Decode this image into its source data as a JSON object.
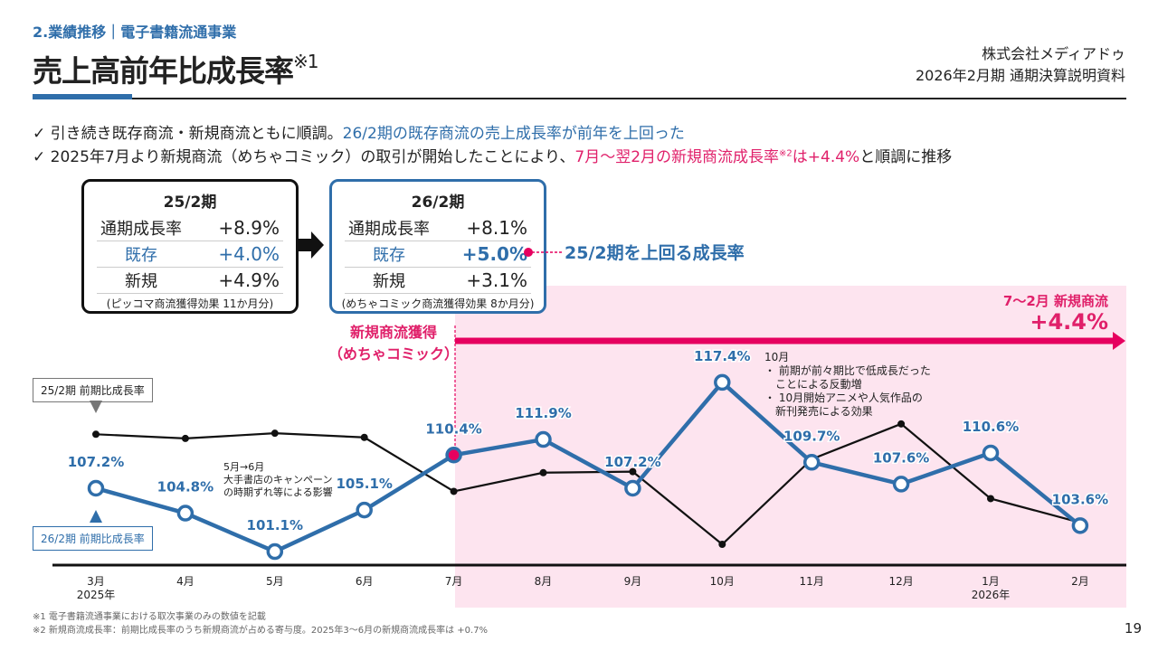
{
  "header": {
    "section": "2.業績推移｜電子書籍流通事業",
    "title": "売上高前年比成長率",
    "title_note": "※1",
    "company": "株式会社メディアドゥ",
    "document": "2026年2月期 通期決算説明資料"
  },
  "bullets": [
    {
      "check": "✓",
      "text": "引き続き既存商流・新規商流ともに順調。",
      "highlight": "26/2期の既存商流の売上成長率が前年を上回った"
    },
    {
      "check": "✓",
      "text": "2025年7月より新規商流（めちゃコミック）の取引が開始したことにより、",
      "highlight": "7月～翌2月の新規商流成長率",
      "note": "※2",
      "highlight2": "は+4.4%",
      "tail": "と順調に推移"
    }
  ],
  "summary_boxes": [
    {
      "period": "25/2期",
      "rows": [
        {
          "label": "通期成長率",
          "value": "+8.9%"
        },
        {
          "label": "既存",
          "value": "+4.0%"
        },
        {
          "label": "新規",
          "value": "+4.9%"
        }
      ],
      "note": "(ピッコマ商流獲得効果 11か月分)"
    },
    {
      "period": "26/2期",
      "rows": [
        {
          "label": "通期成長率",
          "value": "+8.1%"
        },
        {
          "label": "既存",
          "value": "+5.0%"
        },
        {
          "label": "新規",
          "value": "+3.1%"
        }
      ],
      "note": "(めちゃコミック商流獲得効果 8か月分)"
    }
  ],
  "callout": "25/2期を上回る成長率",
  "new_channel": {
    "label1": "新規商流獲得",
    "label2": "（めちゃコミック）",
    "range": "7～2月 新規商流",
    "value": "+4.4%"
  },
  "annotations": {
    "may_june": [
      "5月→6月",
      "大手書店のキャンペーン",
      "の時期ずれ等による影響"
    ],
    "october": [
      "10月",
      "・ 前期が前々期比で低成長だった",
      "　ことによる反動増",
      "・ 10月開始アニメや人気作品の",
      "　新刊発売による効果"
    ]
  },
  "colors": {
    "blue": "#2f6eaa",
    "pink": "#e6005f",
    "pink_bg": "#fde4ef",
    "black": "#111111"
  },
  "chart_data": {
    "type": "line",
    "categories": [
      "3月",
      "4月",
      "5月",
      "6月",
      "7月",
      "8月",
      "9月",
      "10月",
      "11月",
      "12月",
      "1月",
      "2月"
    ],
    "category_sublabels": {
      "0": "2025年",
      "10": "2026年"
    },
    "series": [
      {
        "name": "25/2期 前期比成長率",
        "color": "#111111",
        "values": [
          112.4,
          112.0,
          112.5,
          112.1,
          106.9,
          108.7,
          108.8,
          101.8,
          110.0,
          113.4,
          106.2,
          103.9
        ]
      },
      {
        "name": "26/2期 前期比成長率",
        "color": "#2f6eaa",
        "values": [
          107.2,
          104.8,
          101.1,
          105.1,
          110.4,
          111.9,
          107.2,
          117.4,
          109.7,
          107.6,
          110.6,
          103.6
        ],
        "labels": [
          "107.2%",
          "104.8%",
          "101.1%",
          "105.1%",
          "110.4%",
          "111.9%",
          "107.2%",
          "117.4%",
          "109.7%",
          "107.6%",
          "110.6%",
          "103.6%"
        ]
      }
    ],
    "highlight_range": [
      "7月",
      "2月"
    ],
    "grid": false,
    "legend": "left"
  },
  "footnotes": [
    "※1 電子書籍流通事業における取次事業のみの数値を記載",
    "※2 新規商流成長率：前期比成長率のうち新規商流が占める寄与度。2025年3～6月の新規商流成長率は +0.7%"
  ],
  "page_number": "19"
}
